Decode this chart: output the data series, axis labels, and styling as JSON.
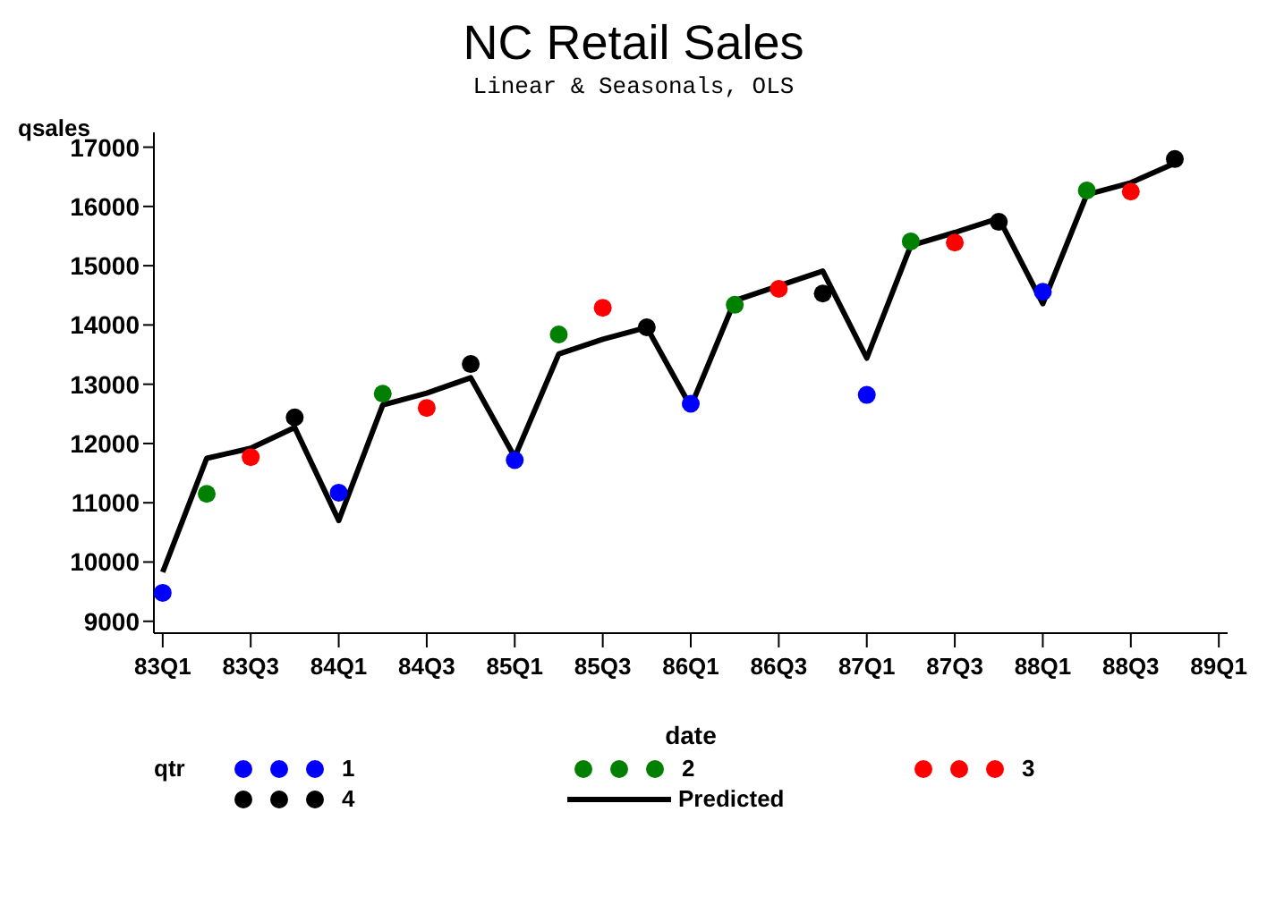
{
  "chart_data": {
    "type": "scatter",
    "title": "NC Retail Sales",
    "subtitle": "Linear & Seasonals, OLS",
    "xlabel": "date",
    "ylabel": "qsales",
    "legend_title": "qtr",
    "legend": "bottom",
    "marker": "circle",
    "categories": [
      "83Q1",
      null,
      "83Q3",
      null,
      "84Q1",
      null,
      "84Q3",
      null,
      "85Q1",
      null,
      "85Q3",
      null,
      "86Q1",
      null,
      "86Q3",
      null,
      "87Q1",
      null,
      "87Q3",
      null,
      "88Q1",
      null,
      "88Q3",
      null,
      "89Q1"
    ],
    "ylim": [
      8800,
      17250
    ],
    "yticks": [
      9000,
      10000,
      11000,
      12000,
      13000,
      14000,
      15000,
      16000,
      17000
    ],
    "series": [
      {
        "name": "1",
        "color": "#0000ff",
        "values": [
          9480,
          null,
          null,
          null,
          11170,
          null,
          null,
          null,
          11720,
          null,
          null,
          null,
          12670,
          null,
          null,
          null,
          12820,
          null,
          null,
          null,
          14560,
          null,
          null,
          null,
          null
        ]
      },
      {
        "name": "2",
        "color": "#008000",
        "values": [
          null,
          11150,
          null,
          null,
          null,
          12840,
          null,
          null,
          null,
          13840,
          null,
          null,
          null,
          14340,
          null,
          null,
          null,
          15410,
          null,
          null,
          null,
          16270,
          null,
          null,
          null
        ]
      },
      {
        "name": "3",
        "color": "#ff0000",
        "values": [
          null,
          null,
          11770,
          null,
          null,
          null,
          12600,
          null,
          null,
          null,
          14290,
          null,
          null,
          null,
          14610,
          null,
          null,
          null,
          15390,
          null,
          null,
          null,
          16250,
          null,
          null
        ]
      },
      {
        "name": "4",
        "color": "#000000",
        "values": [
          null,
          null,
          null,
          12440,
          null,
          null,
          null,
          13340,
          null,
          null,
          null,
          13960,
          null,
          null,
          null,
          14530,
          null,
          null,
          null,
          15740,
          null,
          null,
          null,
          16800,
          null
        ]
      },
      {
        "name": "Predicted",
        "type": "line",
        "color": "#000000",
        "marker": "none",
        "line_style": "solid",
        "values": [
          9830,
          11750,
          11920,
          12270,
          10700,
          12650,
          12850,
          13110,
          11770,
          13510,
          13760,
          13960,
          12620,
          14410,
          14660,
          14910,
          13440,
          15340,
          15560,
          15800,
          14360,
          16200,
          16400,
          16730,
          null
        ]
      }
    ]
  }
}
